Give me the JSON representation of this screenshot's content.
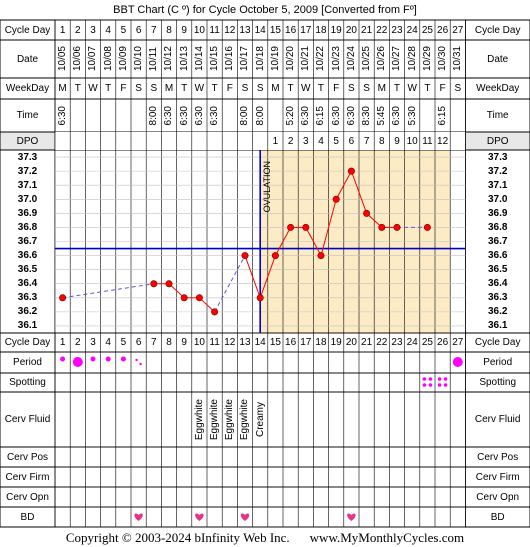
{
  "title": "BBT Chart (C º) for Cycle October 5, 2009  [Converted from Fº]",
  "footer": {
    "copyright": "Copyright © 2003-2024 bInfinity Web Inc.",
    "site": "www.MyMonthlyCycles.com"
  },
  "labels": {
    "cycle_day": "Cycle Day",
    "date": "Date",
    "weekday": "WeekDay",
    "time": "Time",
    "dpo": "DPO",
    "period": "Period",
    "spotting": "Spotting",
    "cerv_fluid": "Cerv Fluid",
    "cerv_pos": "Cerv Pos",
    "cerv_firm": "Cerv Firm",
    "cerv_opn": "Cerv Opn",
    "bd": "BD",
    "ovulation": "OVULATION"
  },
  "colors": {
    "grid_bg": "#ffffff",
    "luteal_bg": "#fcebc5",
    "header_bg": "#e8e8e8",
    "line": "#ff0000",
    "point": "#ff0000",
    "coverline": "#0000c8",
    "ovulation_line": "#0000c8",
    "period": "#ff00ff",
    "heart": "#e8338a"
  },
  "chart_data": {
    "type": "line",
    "x": [
      1,
      2,
      3,
      4,
      5,
      6,
      7,
      8,
      9,
      10,
      11,
      12,
      13,
      14,
      15,
      16,
      17,
      18,
      19,
      20,
      21,
      22,
      23,
      24,
      25,
      26,
      27
    ],
    "dates": [
      "10/05",
      "10/06",
      "10/07",
      "10/08",
      "10/09",
      "10/10",
      "10/11",
      "10/12",
      "10/13",
      "10/14",
      "10/15",
      "10/16",
      "10/17",
      "10/18",
      "10/19",
      "10/20",
      "10/21",
      "10/22",
      "10/23",
      "10/24",
      "10/25",
      "10/26",
      "10/27",
      "10/28",
      "10/29",
      "10/30",
      "10/31"
    ],
    "weekdays": [
      "M",
      "T",
      "W",
      "T",
      "F",
      "S",
      "S",
      "M",
      "T",
      "W",
      "T",
      "F",
      "S",
      "S",
      "M",
      "T",
      "W",
      "T",
      "F",
      "S",
      "S",
      "M",
      "T",
      "W",
      "T",
      "F",
      "S"
    ],
    "times": [
      "6:30",
      "",
      "",
      "",
      "",
      "",
      "8:00",
      "6:30",
      "6:30",
      "6:30",
      "6:30",
      "",
      "8:00",
      "8:00",
      "",
      "5:20",
      "6:30",
      "6:15",
      "6:30",
      "6:30",
      "8:30",
      "5:45",
      "6:30",
      "5:30",
      "",
      "6:15",
      ""
    ],
    "dpo": [
      "",
      "",
      "",
      "",
      "",
      "",
      "",
      "",
      "",
      "",
      "",
      "",
      "",
      "",
      "1",
      "2",
      "3",
      "4",
      "5",
      "6",
      "7",
      "8",
      "9",
      "10",
      "11",
      "12",
      ""
    ],
    "temps": [
      36.3,
      null,
      null,
      null,
      null,
      null,
      36.4,
      36.4,
      36.3,
      36.3,
      36.2,
      null,
      36.6,
      36.3,
      36.6,
      36.8,
      36.8,
      36.6,
      37.0,
      37.2,
      36.9,
      36.8,
      36.8,
      null,
      36.8,
      null,
      null
    ],
    "ylim": [
      36.1,
      37.3
    ],
    "yticks": [
      "37.3",
      "37.2",
      "37.1",
      "37.0",
      "36.9",
      "36.8",
      "36.7",
      "36.6",
      "36.5",
      "36.4",
      "36.3",
      "36.2",
      "36.1"
    ],
    "coverline": 36.65,
    "ovulation_day": 14,
    "dashed_segments": [
      [
        1,
        7
      ],
      [
        11,
        14
      ]
    ],
    "period": {
      "2": "large",
      "3": "small",
      "4": "small",
      "5": "small",
      "6": "tiny",
      "1": "small",
      "27": "large"
    },
    "spotting_days": [
      25,
      26
    ],
    "cerv_fluid": {
      "10": "Eggwhite",
      "11": "Eggwhite",
      "12": "Eggwhite",
      "13": "Eggwhite",
      "14": "Creamy"
    },
    "bd_days": [
      6,
      10,
      13,
      20
    ]
  }
}
